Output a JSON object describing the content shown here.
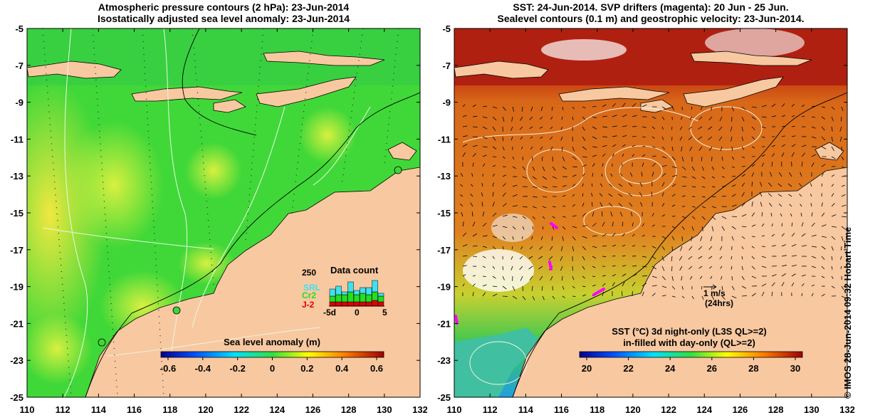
{
  "left_panel": {
    "title_line1": "Atmospheric pressure contours (2 hPa): 23-Jun-2014",
    "title_line2": "Isostatically adjusted sea level anomaly: 23-Jun-2014",
    "x_ticks": [
      "110",
      "112",
      "114",
      "116",
      "118",
      "120",
      "122",
      "124",
      "126",
      "128",
      "130",
      "132"
    ],
    "y_ticks": [
      "-5",
      "-7",
      "-9",
      "-11",
      "-13",
      "-15",
      "-17",
      "-19",
      "-21",
      "-23",
      "-25"
    ],
    "colorbar": {
      "label": "Sea level anomaly (m)",
      "ticks": [
        "-0.6",
        "-0.4",
        "-0.2",
        "0",
        "0.2",
        "0.4",
        "0.6"
      ]
    },
    "data_count": {
      "title": "Data count",
      "max_label": "250",
      "axis_ticks": [
        "-5d",
        "0",
        "5"
      ],
      "legend": [
        "SRL",
        "Cr2",
        "J-2"
      ],
      "colors": [
        "#40e0f0",
        "#20e020",
        "#e00000"
      ]
    }
  },
  "right_panel": {
    "title_line1": "SST: 24-Jun-2014. SVP drifters (magenta): 20 Jun - 25 Jun.",
    "title_line2": "Sealevel contours (0.1 m) and geostrophic velocity: 23-Jun-2014.",
    "x_ticks": [
      "110",
      "112",
      "114",
      "116",
      "118",
      "120",
      "122",
      "124",
      "126",
      "128",
      "130",
      "132"
    ],
    "y_ticks": [
      "-5",
      "-7",
      "-9",
      "-11",
      "-13",
      "-15",
      "-17",
      "-19",
      "-21",
      "-23",
      "-25"
    ],
    "velocity_scale": {
      "value": "1 m/s",
      "period": "(24hrs)"
    },
    "colorbar": {
      "label_line1": "SST (°C)  3d night-only (L3S QL>=2)",
      "label_line2": "in-filled with day-only (QL>=2)",
      "ticks": [
        "20",
        "22",
        "24",
        "26",
        "28",
        "30"
      ]
    }
  },
  "credit": "© IMOS 28-Jun-2014 09:32 Hobart Time",
  "colors": {
    "land": "#f8c8a0",
    "ocean_green": "#30d030",
    "sst_orange": "#d87018",
    "sst_red": "#b02010",
    "drifter": "#ff00ff"
  }
}
